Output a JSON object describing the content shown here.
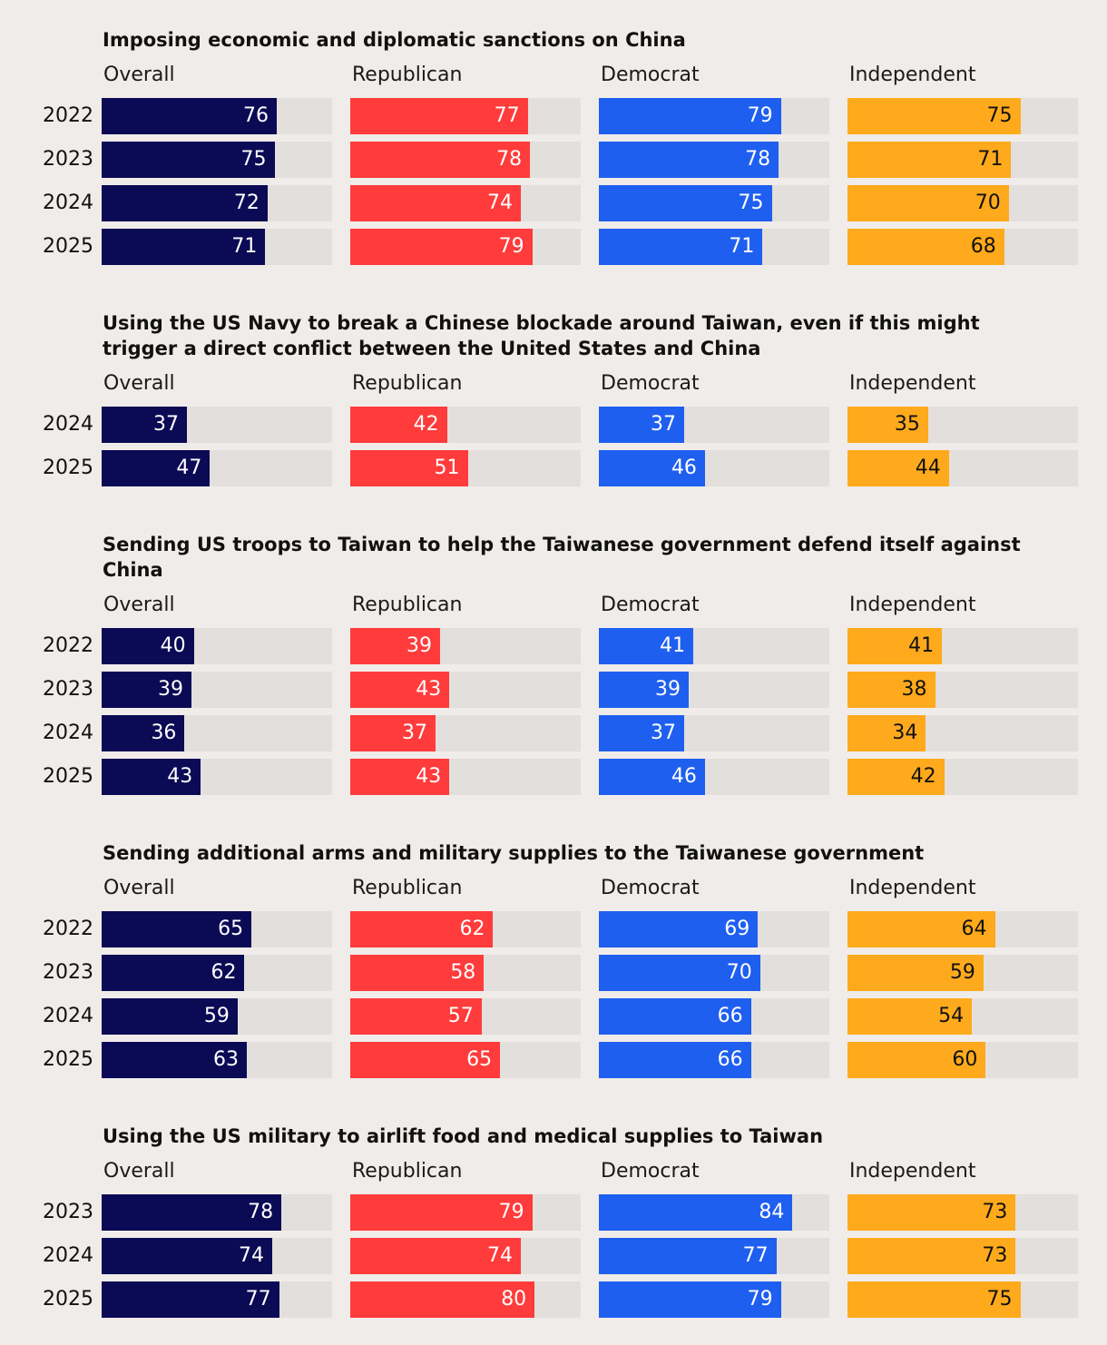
{
  "colors": {
    "background": "#f0ece9",
    "track": "#e3dfdc",
    "Overall": "#0b0a55",
    "Republican": "#ff3b3b",
    "Democrat": "#1f5ff0",
    "Independent": "#ffaa1c"
  },
  "chart_data": [
    {
      "type": "bar",
      "title": "Imposing economic and diplomatic sanctions on China",
      "categories": [
        "2022",
        "2023",
        "2024",
        "2025"
      ],
      "xlim": [
        0,
        100
      ],
      "series": [
        {
          "name": "Overall",
          "values": [
            76,
            75,
            72,
            71
          ]
        },
        {
          "name": "Republican",
          "values": [
            77,
            78,
            74,
            79
          ]
        },
        {
          "name": "Democrat",
          "values": [
            79,
            78,
            75,
            71
          ]
        },
        {
          "name": "Independent",
          "values": [
            75,
            71,
            70,
            68
          ]
        }
      ]
    },
    {
      "type": "bar",
      "title": "Using the US Navy to break a Chinese blockade around Taiwan, even if this might\ntrigger a direct conflict between the United States and China",
      "categories": [
        "2024",
        "2025"
      ],
      "xlim": [
        0,
        100
      ],
      "series": [
        {
          "name": "Overall",
          "values": [
            37,
            47
          ]
        },
        {
          "name": "Republican",
          "values": [
            42,
            51
          ]
        },
        {
          "name": "Democrat",
          "values": [
            37,
            46
          ]
        },
        {
          "name": "Independent",
          "values": [
            35,
            44
          ]
        }
      ]
    },
    {
      "type": "bar",
      "title": "Sending US troops to Taiwan to help the Taiwanese government defend itself against\nChina",
      "categories": [
        "2022",
        "2023",
        "2024",
        "2025"
      ],
      "xlim": [
        0,
        100
      ],
      "series": [
        {
          "name": "Overall",
          "values": [
            40,
            39,
            36,
            43
          ]
        },
        {
          "name": "Republican",
          "values": [
            39,
            43,
            37,
            43
          ]
        },
        {
          "name": "Democrat",
          "values": [
            41,
            39,
            37,
            46
          ]
        },
        {
          "name": "Independent",
          "values": [
            41,
            38,
            34,
            42
          ]
        }
      ]
    },
    {
      "type": "bar",
      "title": "Sending additional arms and military supplies to the Taiwanese government",
      "categories": [
        "2022",
        "2023",
        "2024",
        "2025"
      ],
      "xlim": [
        0,
        100
      ],
      "series": [
        {
          "name": "Overall",
          "values": [
            65,
            62,
            59,
            63
          ]
        },
        {
          "name": "Republican",
          "values": [
            62,
            58,
            57,
            65
          ]
        },
        {
          "name": "Democrat",
          "values": [
            69,
            70,
            66,
            66
          ]
        },
        {
          "name": "Independent",
          "values": [
            64,
            59,
            54,
            60
          ]
        }
      ]
    },
    {
      "type": "bar",
      "title": "Using the US military to airlift food and medical supplies to Taiwan",
      "categories": [
        "2023",
        "2024",
        "2025"
      ],
      "xlim": [
        0,
        100
      ],
      "series": [
        {
          "name": "Overall",
          "values": [
            78,
            74,
            77
          ]
        },
        {
          "name": "Republican",
          "values": [
            79,
            74,
            80
          ]
        },
        {
          "name": "Democrat",
          "values": [
            84,
            77,
            79
          ]
        },
        {
          "name": "Independent",
          "values": [
            73,
            73,
            75
          ]
        }
      ]
    }
  ]
}
